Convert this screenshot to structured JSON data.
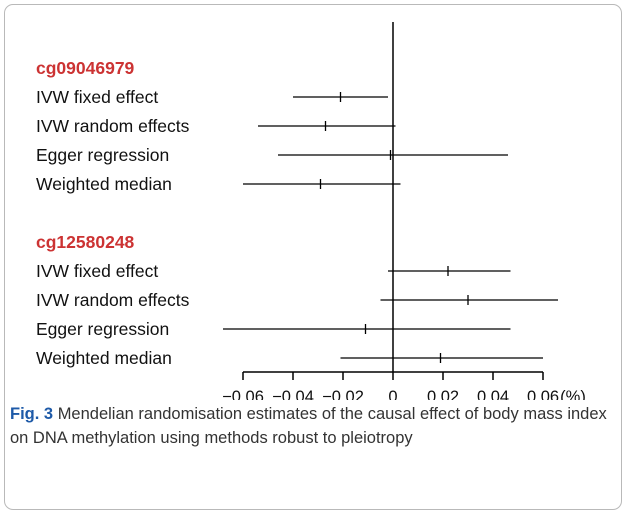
{
  "figure": {
    "label": "Fig. 3",
    "caption": "Mendelian randomisation estimates of the causal effect of body mass index on DNA methylation using methods robust to pleiotropy"
  },
  "colors": {
    "group_label": "#cc3333",
    "figure_label": "#1e5aa8",
    "ink": "#111111"
  },
  "chart_data": {
    "type": "forest",
    "xunit": "(%)",
    "xlim": [
      -0.06,
      0.06
    ],
    "xticks": [
      -0.06,
      -0.04,
      -0.02,
      0,
      0.02,
      0.04,
      0.06
    ],
    "xtick_labels": [
      "−0.06",
      "−0.04",
      "−0.02",
      "0",
      "0.02",
      "0.04",
      "0.06"
    ],
    "reference_line": 0,
    "groups": [
      {
        "name": "cg09046979",
        "rows": [
          {
            "label": "IVW fixed effect",
            "estimate": -0.021,
            "lower": -0.04,
            "upper": -0.002
          },
          {
            "label": "IVW random effects",
            "estimate": -0.027,
            "lower": -0.054,
            "upper": 0.001
          },
          {
            "label": "Egger regression",
            "estimate": -0.001,
            "lower": -0.046,
            "upper": 0.046
          },
          {
            "label": "Weighted median",
            "estimate": -0.029,
            "lower": -0.06,
            "upper": 0.003
          }
        ]
      },
      {
        "name": "cg12580248",
        "rows": [
          {
            "label": "IVW fixed effect",
            "estimate": 0.022,
            "lower": -0.002,
            "upper": 0.047
          },
          {
            "label": "IVW random effects",
            "estimate": 0.03,
            "lower": -0.005,
            "upper": 0.066
          },
          {
            "label": "Egger regression",
            "estimate": -0.011,
            "lower": -0.068,
            "upper": 0.047
          },
          {
            "label": "Weighted median",
            "estimate": 0.019,
            "lower": -0.021,
            "upper": 0.06
          }
        ]
      }
    ]
  }
}
